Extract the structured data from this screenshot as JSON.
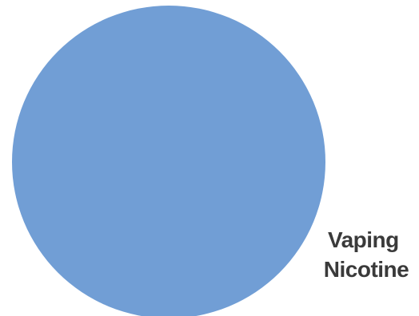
{
  "chart_data": {
    "type": "pie",
    "slices": [
      {
        "label_lines": [
          "Vaping",
          "Nicotine"
        ],
        "value": 100,
        "color": "#719ed5"
      }
    ],
    "title": "",
    "legend": "none"
  }
}
